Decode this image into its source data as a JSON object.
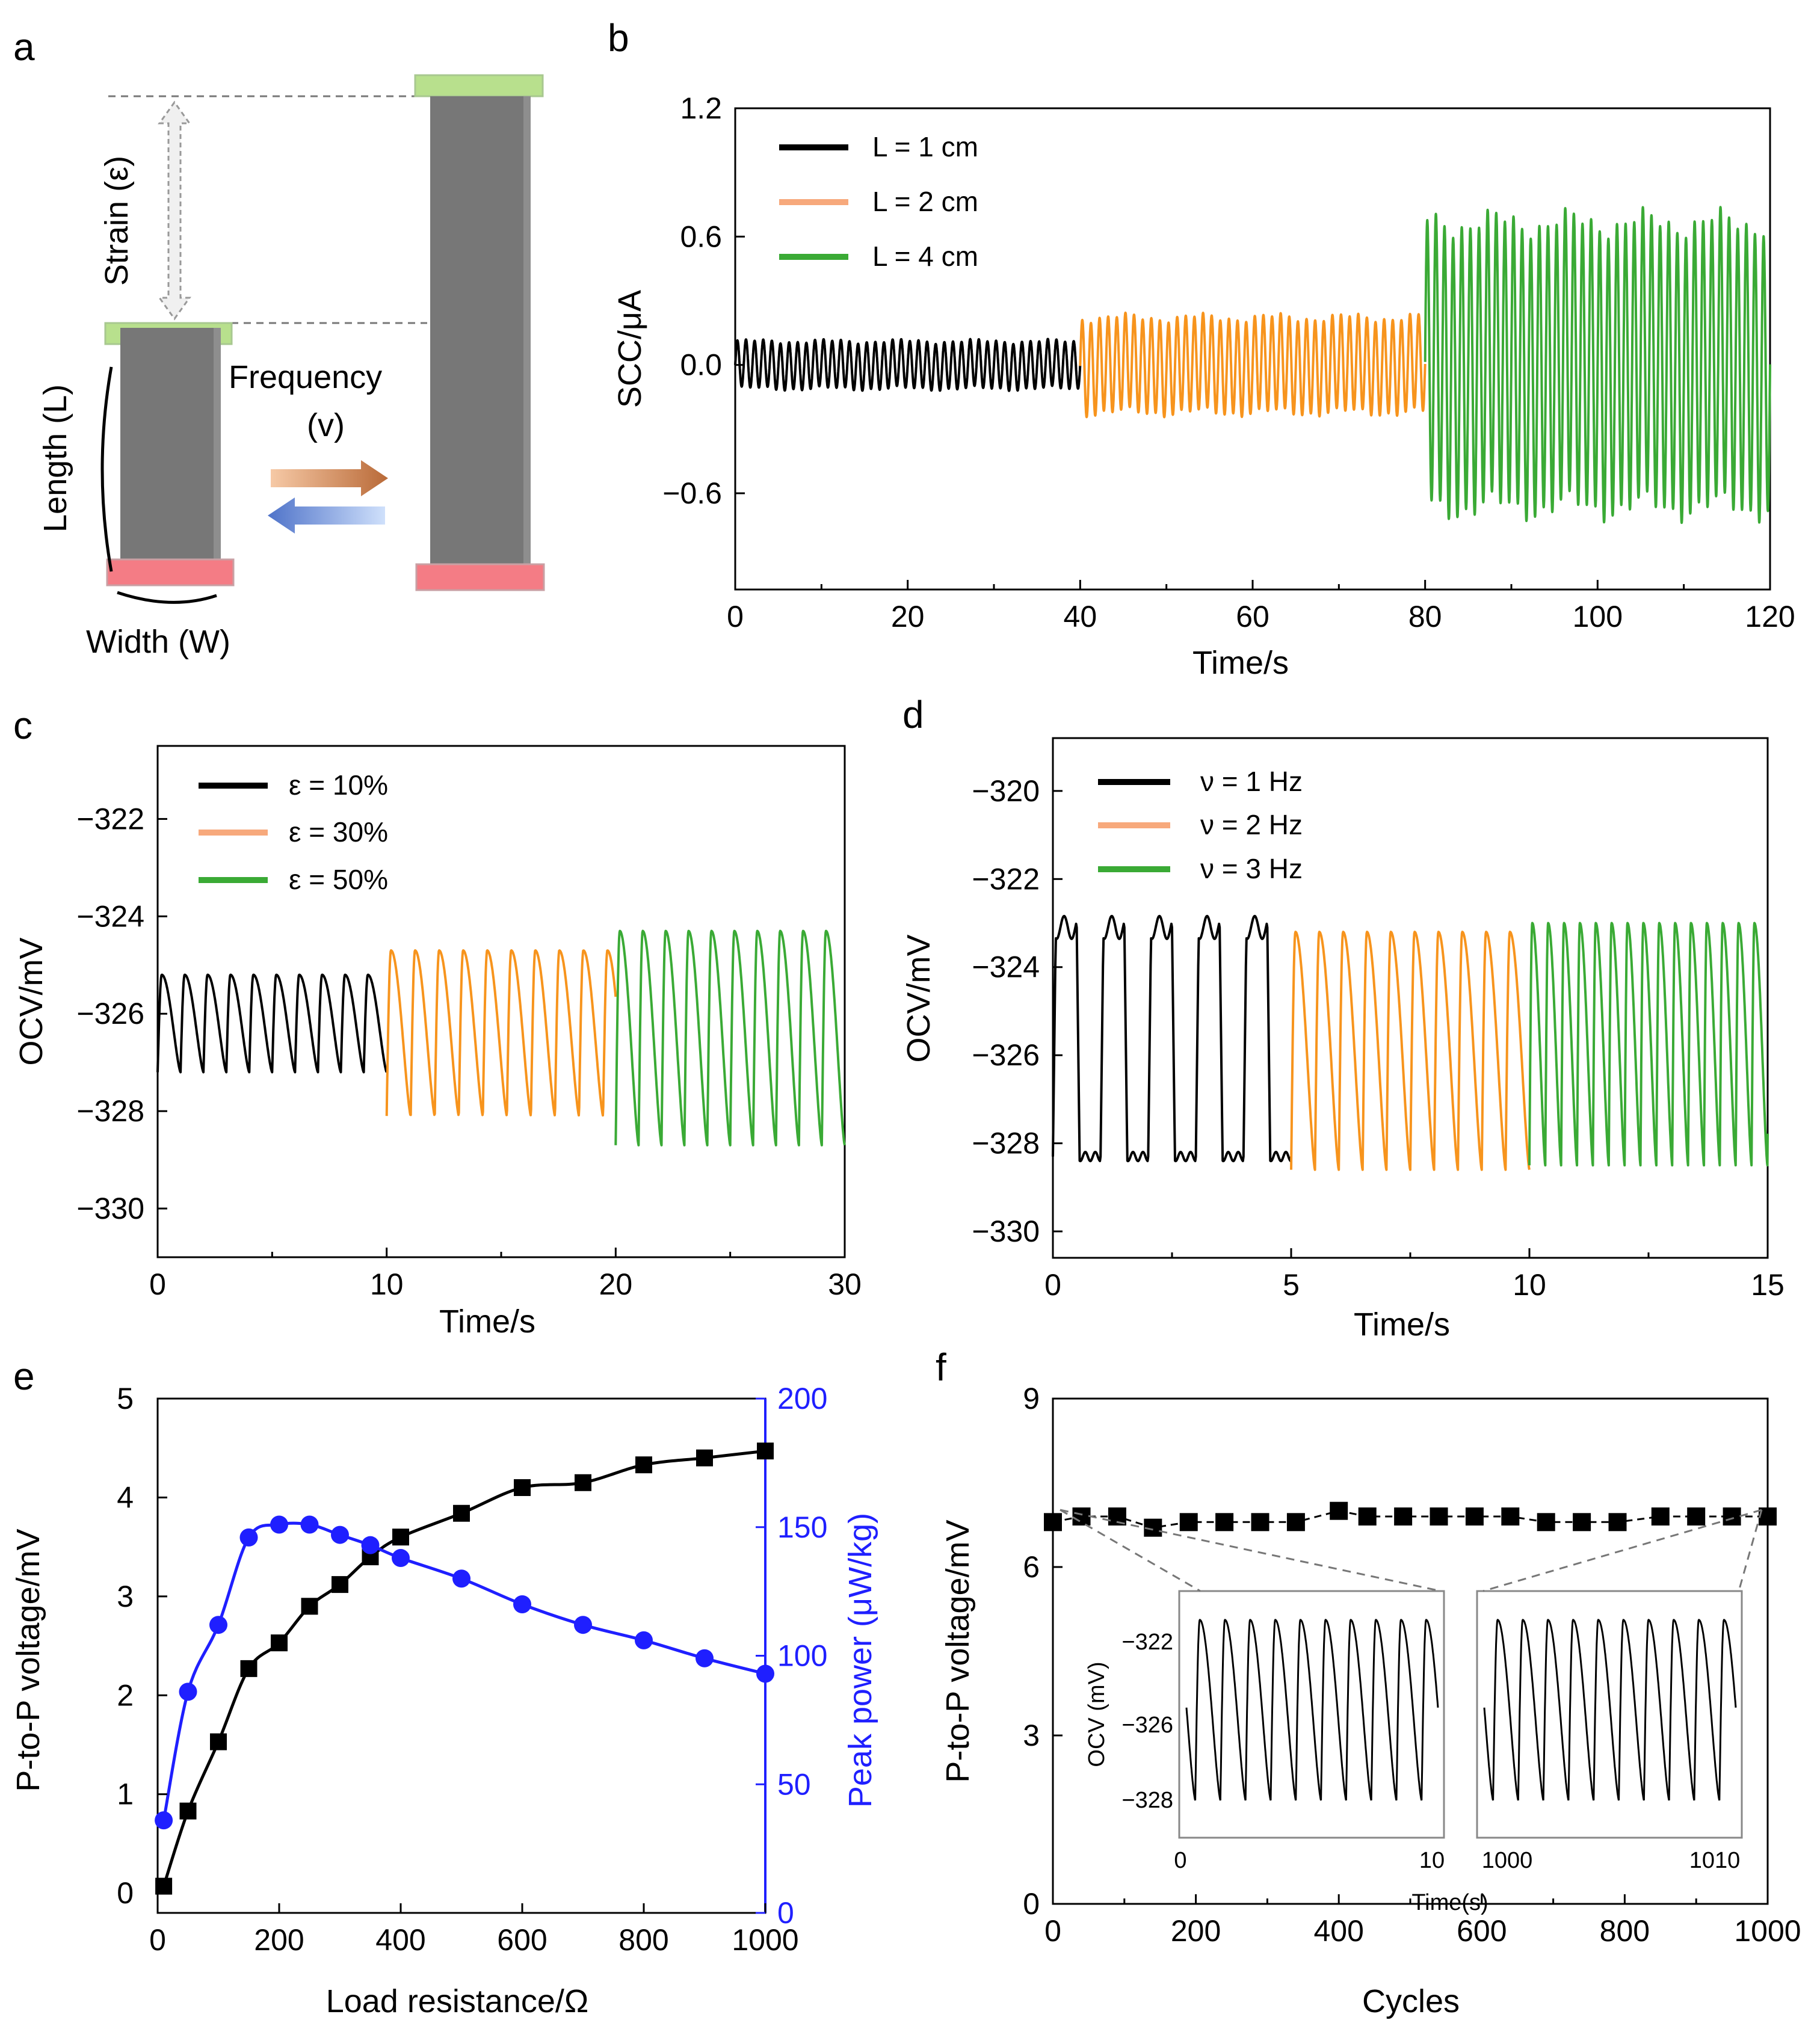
{
  "colors": {
    "black": "#000000",
    "orange": "#f7941d",
    "green": "#3aaa35",
    "blue": "#1f1fff",
    "gray": "#7a7a7a",
    "pad_green": "#b8e08d",
    "pad_red": "#f47c85"
  },
  "panel_labels": [
    "a",
    "b",
    "c",
    "d",
    "e",
    "f"
  ],
  "schematic": {
    "strain": "Strain (ε)",
    "length": "Length (L)",
    "frequency": "Frequency",
    "frequency_sym": "(v)",
    "width": "Width (W)"
  },
  "chart_data": [
    {
      "id": "b",
      "type": "line",
      "xlabel": "Time/s",
      "ylabel": "SCC/μA",
      "xlim": [
        0,
        120
      ],
      "ylim": [
        -1.05,
        1.2
      ],
      "xticks": [
        "0",
        "20",
        "40",
        "60",
        "80",
        "100",
        "120"
      ],
      "yticks": [
        "1.2",
        "0.6",
        "0.0",
        "−0.6"
      ],
      "ytick_values": [
        1.2,
        0.6,
        0.0,
        -0.6
      ],
      "series": [
        {
          "name": "L = 1 cm",
          "color": "#000000",
          "t_range": [
            0,
            40
          ],
          "period": 1.0,
          "center": 0.0,
          "amplitude": 0.13
        },
        {
          "name": "L = 2 cm",
          "color": "#f7941d",
          "t_range": [
            40,
            80
          ],
          "period": 1.0,
          "center": 0.0,
          "amplitude": 0.26
        },
        {
          "name": "L = 4 cm",
          "color": "#3aaa35",
          "t_range": [
            80,
            120
          ],
          "period": 1.0,
          "center": 0.0,
          "amplitude": 0.78
        }
      ]
    },
    {
      "id": "c",
      "type": "line",
      "xlabel": "Time/s",
      "ylabel": "OCV/mV",
      "xlim": [
        0,
        30
      ],
      "ylim": [
        -331,
        -320.5
      ],
      "xticks": [
        "0",
        "10",
        "20",
        "30"
      ],
      "yticks": [
        "−322",
        "−324",
        "−326",
        "−328",
        "−330"
      ],
      "ytick_values": [
        -322,
        -324,
        -326,
        -328,
        -330
      ],
      "series": [
        {
          "name": "ε = 10%",
          "color": "#000000",
          "t_range": [
            0,
            10
          ],
          "period": 1.0,
          "min": -327.2,
          "max": -325.2
        },
        {
          "name": "ε = 30%",
          "color": "#f7941d",
          "t_range": [
            10,
            20
          ],
          "period": 1.05,
          "min": -328.1,
          "max": -324.7
        },
        {
          "name": "ε = 50%",
          "color": "#3aaa35",
          "t_range": [
            20,
            30
          ],
          "period": 1.0,
          "min": -328.7,
          "max": -324.3
        }
      ]
    },
    {
      "id": "d",
      "type": "line",
      "xlabel": "Time/s",
      "ylabel": "OCV/mV",
      "xlim": [
        0,
        15
      ],
      "ylim": [
        -330.6,
        -318.8
      ],
      "xticks": [
        "0",
        "5",
        "10",
        "15"
      ],
      "yticks": [
        "−320",
        "−322",
        "−324",
        "−326",
        "−328",
        "−330"
      ],
      "ytick_values": [
        -320,
        -322,
        -324,
        -326,
        -328,
        -330
      ],
      "series": [
        {
          "name": "ν = 1 Hz",
          "color": "#000000",
          "t_range": [
            0,
            5
          ],
          "period": 1.0,
          "min": -328.3,
          "max": -323.1
        },
        {
          "name": "ν = 2 Hz",
          "color": "#f7941d",
          "t_range": [
            5,
            10
          ],
          "period": 0.5,
          "min": -328.6,
          "max": -323.2
        },
        {
          "name": "ν = 3 Hz",
          "color": "#3aaa35",
          "t_range": [
            10,
            15
          ],
          "period": 0.333,
          "min": -328.5,
          "max": -323.0
        }
      ]
    },
    {
      "id": "e",
      "type": "scatter",
      "xlabel": "Load resistance/Ω",
      "ylabel": "P-to-P voltage/mV",
      "ylabel_right": "Peak power (μW/kg)",
      "xlim": [
        0,
        1000
      ],
      "ylim": [
        -0.2,
        5.0
      ],
      "ylim_right": [
        0,
        200
      ],
      "xticks": [
        "0",
        "200",
        "400",
        "600",
        "800",
        "1000"
      ],
      "yticks": [
        "0",
        "1",
        "2",
        "3",
        "4",
        "5"
      ],
      "yticks_right": [
        "0",
        "50",
        "100",
        "150",
        "200"
      ],
      "series": [
        {
          "name": "P-to-P voltage",
          "axis": "left",
          "color": "#000000",
          "marker": "square",
          "x": [
            10,
            50,
            100,
            150,
            200,
            250,
            300,
            350,
            400,
            500,
            600,
            700,
            800,
            900,
            1000
          ],
          "y": [
            0.07,
            0.83,
            1.53,
            2.27,
            2.53,
            2.9,
            3.12,
            3.4,
            3.6,
            3.84,
            4.1,
            4.15,
            4.33,
            4.4,
            4.47
          ]
        },
        {
          "name": "Peak power",
          "axis": "right",
          "color": "#1f1fff",
          "marker": "circle",
          "x": [
            10,
            50,
            100,
            150,
            200,
            250,
            300,
            350,
            400,
            500,
            600,
            700,
            800,
            900,
            1000
          ],
          "y": [
            36,
            86,
            112,
            146,
            151,
            151,
            147,
            143,
            138,
            130,
            120,
            112,
            106,
            99,
            93
          ]
        }
      ]
    },
    {
      "id": "f",
      "type": "scatter",
      "xlabel": "Cycles",
      "ylabel": "P-to-P voltage/mV",
      "xlim": [
        0,
        1000
      ],
      "ylim": [
        0,
        9
      ],
      "xticks": [
        "0",
        "200",
        "400",
        "600",
        "800",
        "1000"
      ],
      "yticks": [
        "0",
        "3",
        "6",
        "9"
      ],
      "ytick_values": [
        0,
        3,
        6,
        9
      ],
      "series": [
        {
          "name": "P-to-P voltage",
          "color": "#000000",
          "marker": "square",
          "x": [
            0,
            40,
            90,
            140,
            190,
            240,
            290,
            340,
            400,
            440,
            490,
            540,
            590,
            640,
            690,
            740,
            790,
            850,
            900,
            950,
            1000
          ],
          "y": [
            6.8,
            6.9,
            6.9,
            6.7,
            6.8,
            6.8,
            6.8,
            6.8,
            7.0,
            6.9,
            6.9,
            6.9,
            6.9,
            6.9,
            6.8,
            6.8,
            6.8,
            6.9,
            6.9,
            6.9,
            6.9
          ]
        }
      ],
      "inset": {
        "ylabel": "OCV (mV)",
        "xlabel": "Time(s)",
        "yticks": [
          "−322",
          "−326",
          "−328"
        ],
        "panel1_xticks": [
          "0",
          "10"
        ],
        "panel2_xticks": [
          "1000",
          "1010"
        ],
        "ylim": [
          -329.2,
          -320.8
        ],
        "cycles": 10,
        "min": -328.0,
        "max": -321.7
      }
    }
  ]
}
